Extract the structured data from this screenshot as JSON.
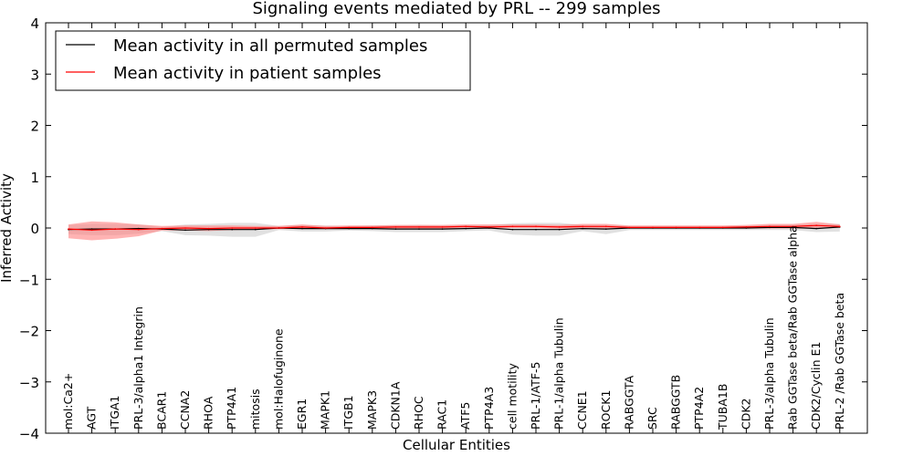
{
  "chart_data": {
    "type": "line",
    "title": "Signaling events mediated by PRL -- 299 samples",
    "xlabel": "Cellular Entities",
    "ylabel": "Inferred Activity",
    "ylim": [
      -4,
      4
    ],
    "yticks": [
      -4,
      -3,
      -2,
      -1,
      0,
      1,
      2,
      3,
      4
    ],
    "ytick_labels": [
      "−4",
      "−3",
      "−2",
      "−1",
      "0",
      "1",
      "2",
      "3",
      "4"
    ],
    "grid": false,
    "legend_position": "top-left",
    "categories": [
      "mol:Ca2+",
      "AGT",
      "ITGA1",
      "PRL-3/alpha1 Integrin",
      "BCAR1",
      "CCNA2",
      "RHOA",
      "PTP4A1",
      "mitosis",
      "mol:Halofuginone",
      "EGR1",
      "MAPK1",
      "ITGB1",
      "MAPK3",
      "CDKN1A",
      "RHOC",
      "RAC1",
      "ATF5",
      "PTP4A3",
      "cell motility",
      "PRL-1/ATF-5",
      "PRL-1/alpha Tubulin",
      "CCNE1",
      "ROCK1",
      "RABGGTA",
      "SRC",
      "RABGGTB",
      "PTP4A2",
      "TUBA1B",
      "CDK2",
      "PRL-3/alpha Tubulin",
      "Rab GGTase beta/Rab GGTase alpha",
      "CDK2/Cyclin E1",
      "PRL-2 /Rab GGTase beta"
    ],
    "series": [
      {
        "name": "Mean activity in all permuted samples",
        "color": "#000000",
        "band_color": "#c8c8c8",
        "values": [
          -0.03,
          -0.02,
          -0.02,
          -0.01,
          -0.02,
          -0.04,
          -0.03,
          -0.03,
          -0.03,
          0.0,
          -0.01,
          -0.01,
          -0.01,
          -0.01,
          -0.02,
          -0.02,
          -0.02,
          -0.01,
          0.0,
          -0.03,
          -0.03,
          -0.03,
          -0.01,
          -0.02,
          0.0,
          0.0,
          0.0,
          0.0,
          0.0,
          0.0,
          0.01,
          0.01,
          -0.01,
          0.02
        ],
        "lower": [
          -0.12,
          -0.14,
          -0.14,
          -0.11,
          -0.06,
          -0.14,
          -0.15,
          -0.17,
          -0.17,
          -0.04,
          -0.07,
          -0.07,
          -0.05,
          -0.06,
          -0.08,
          -0.08,
          -0.08,
          -0.06,
          -0.05,
          -0.13,
          -0.15,
          -0.15,
          -0.06,
          -0.12,
          -0.04,
          -0.04,
          -0.04,
          -0.04,
          -0.04,
          -0.04,
          -0.04,
          -0.04,
          -0.08,
          -0.07
        ],
        "upper": [
          0.06,
          0.08,
          0.08,
          0.07,
          0.02,
          0.07,
          0.08,
          0.1,
          0.1,
          0.04,
          0.06,
          0.05,
          0.04,
          0.05,
          0.05,
          0.06,
          0.05,
          0.06,
          0.06,
          0.09,
          0.1,
          0.1,
          0.06,
          0.06,
          0.04,
          0.04,
          0.04,
          0.04,
          0.04,
          0.04,
          0.06,
          0.06,
          0.08,
          0.08
        ]
      },
      {
        "name": "Mean activity in patient samples",
        "color": "#ff0000",
        "band_color": "#ff8080",
        "values": [
          -0.02,
          -0.04,
          -0.02,
          -0.03,
          -0.01,
          0.0,
          -0.01,
          0.0,
          0.0,
          0.0,
          0.02,
          0.0,
          0.01,
          0.01,
          0.02,
          0.02,
          0.02,
          0.03,
          0.02,
          0.03,
          0.03,
          0.02,
          0.03,
          0.03,
          0.01,
          0.01,
          0.01,
          0.01,
          0.01,
          0.02,
          0.03,
          0.03,
          0.05,
          0.03
        ],
        "lower": [
          -0.2,
          -0.24,
          -0.21,
          -0.16,
          -0.05,
          -0.05,
          -0.06,
          -0.04,
          -0.03,
          -0.02,
          -0.02,
          -0.02,
          -0.01,
          -0.01,
          -0.01,
          -0.01,
          -0.01,
          -0.01,
          -0.01,
          0.0,
          0.0,
          -0.01,
          -0.01,
          -0.01,
          -0.01,
          -0.01,
          -0.01,
          -0.01,
          -0.01,
          -0.01,
          -0.01,
          -0.01,
          -0.01,
          0.0
        ],
        "upper": [
          0.07,
          0.13,
          0.11,
          0.07,
          0.04,
          0.05,
          0.05,
          0.05,
          0.04,
          0.04,
          0.07,
          0.04,
          0.05,
          0.05,
          0.06,
          0.06,
          0.06,
          0.07,
          0.07,
          0.07,
          0.07,
          0.06,
          0.08,
          0.08,
          0.05,
          0.05,
          0.05,
          0.05,
          0.05,
          0.06,
          0.08,
          0.08,
          0.12,
          0.07
        ]
      }
    ]
  }
}
